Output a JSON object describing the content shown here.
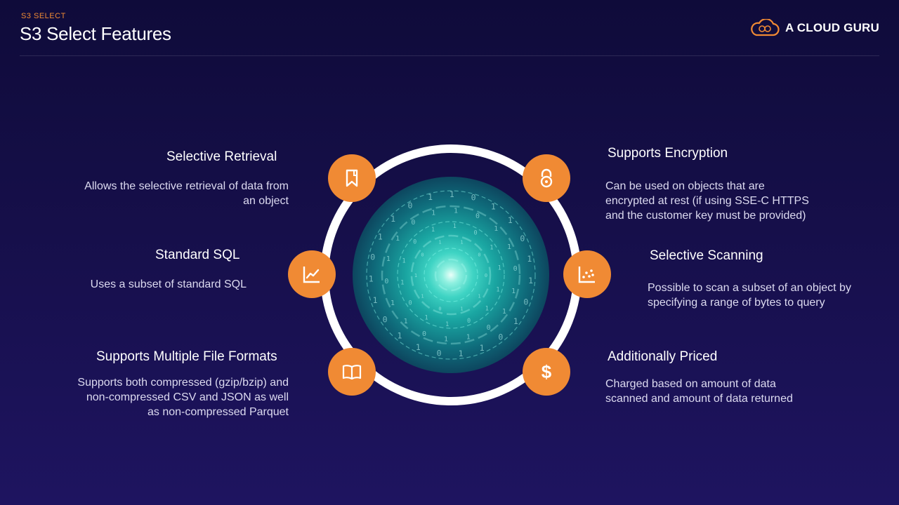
{
  "header": {
    "kicker": "S3 SELECT",
    "title": "S3 Select Features",
    "logo_text": "A CLOUD GURU"
  },
  "colors": {
    "accent": "#f08a34",
    "background": "#160f4a",
    "ring": "#ffffff",
    "orb_glow": "#3fd4c4"
  },
  "features": {
    "selective_retrieval": {
      "title": "Selective Retrieval",
      "description": "Allows the selective retrieval of data from an object",
      "icon": "bookmark-icon"
    },
    "standard_sql": {
      "title": "Standard SQL",
      "description": "Uses a subset of standard SQL",
      "icon": "line-chart-icon"
    },
    "multiple_formats": {
      "title": "Supports Multiple File Formats",
      "description": "Supports both compressed (gzip/bzip) and non-compressed CSV and JSON as well as non-compressed Parquet",
      "icon": "book-icon"
    },
    "encryption": {
      "title": "Supports Encryption",
      "description": "Can be used on objects that are encrypted at rest (if using SSE-C HTTPS and the customer key must be provided)",
      "icon": "padlock-icon"
    },
    "selective_scanning": {
      "title": "Selective Scanning",
      "description": "Possible to scan a subset of an object by specifying a range of bytes to query",
      "icon": "scatter-chart-icon"
    },
    "additionally_priced": {
      "title": "Additionally Priced",
      "description": "Charged based on amount of data scanned and amount of data returned",
      "icon": "dollar-icon",
      "icon_glyph": "$"
    }
  }
}
